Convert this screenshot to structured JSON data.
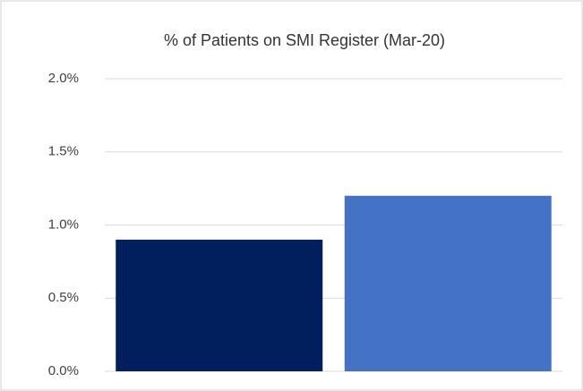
{
  "chart_data": {
    "type": "bar",
    "title": "% of Patients on SMI Register (Mar-20)",
    "categories": [
      null,
      null
    ],
    "values": [
      0.9,
      1.2
    ],
    "colors": [
      "#001f5c",
      "#4472c4"
    ],
    "ylim": [
      0,
      2
    ],
    "yticks": [
      {
        "value": 0,
        "label": "0.0%"
      },
      {
        "value": 0.5,
        "label": "0.5%"
      },
      {
        "value": 1,
        "label": "1.0%"
      },
      {
        "value": 1.5,
        "label": "1.5%"
      },
      {
        "value": 2,
        "label": "2.0%"
      }
    ],
    "grid": true
  }
}
